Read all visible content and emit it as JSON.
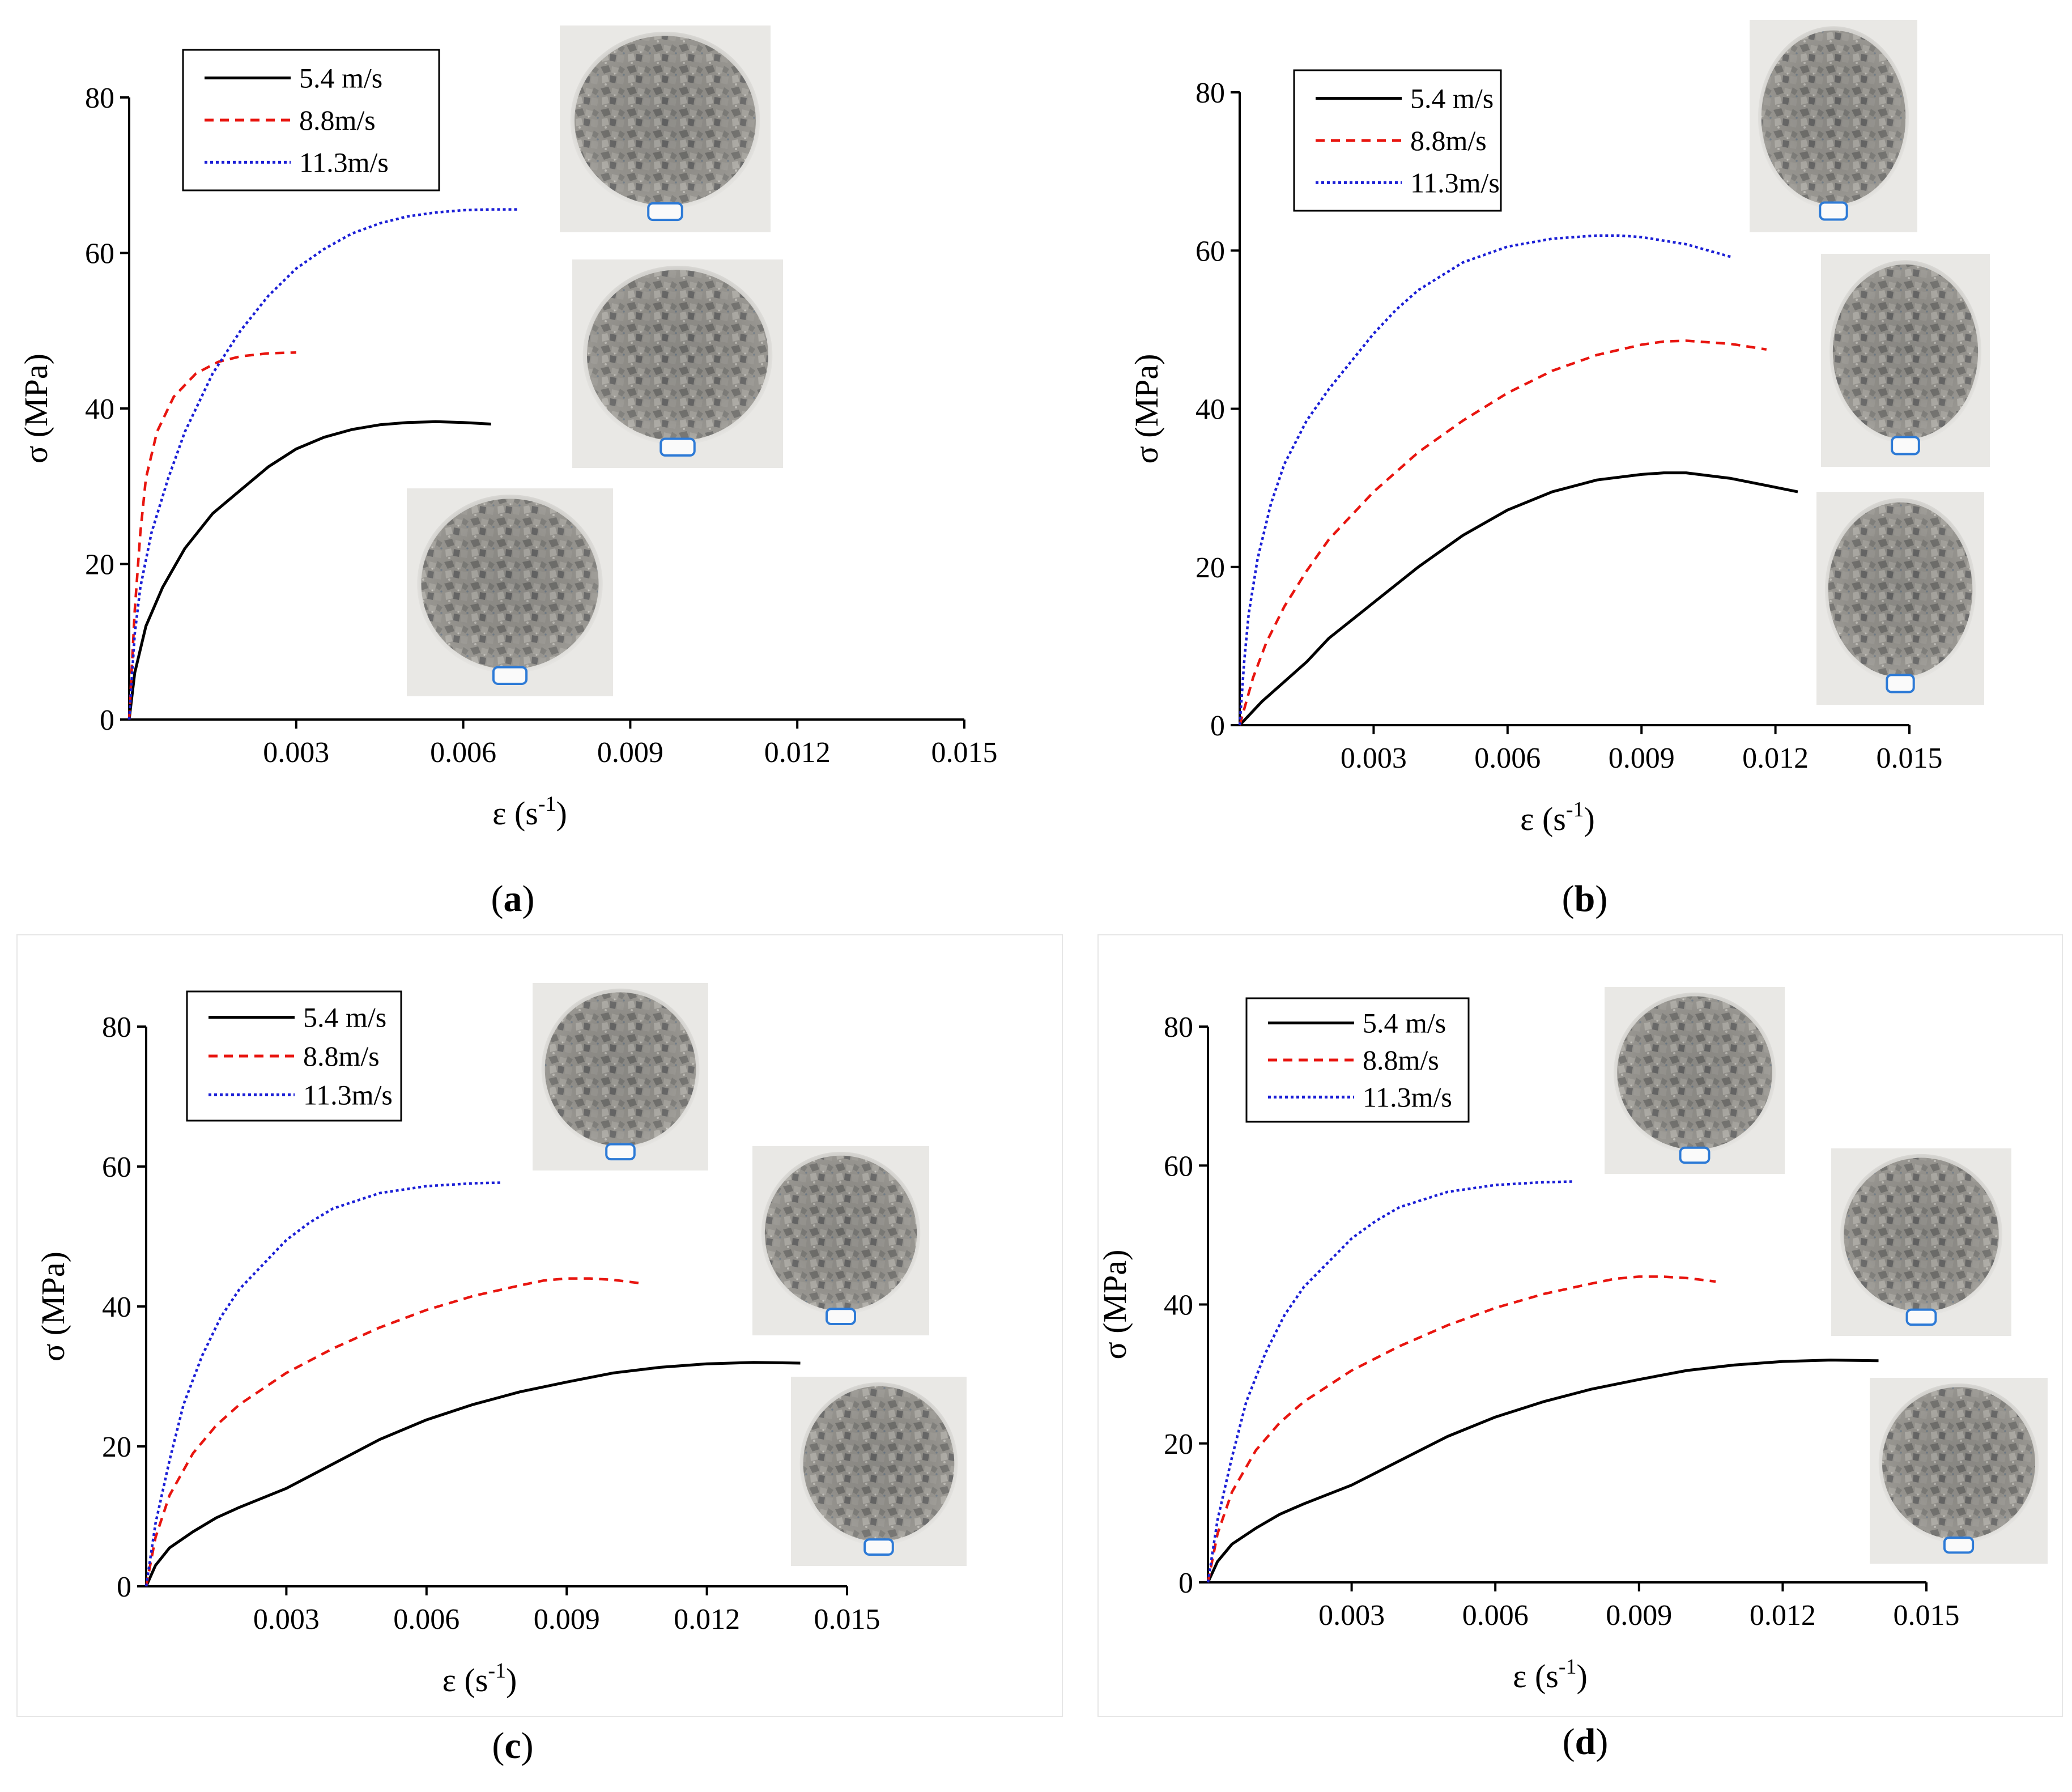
{
  "chart_data": [
    {
      "type": "line",
      "panel_label": "a",
      "xlabel": "ε (s",
      "xlabel_sup": "-1",
      "xlabel_close": ")",
      "ylabel": "σ (MPa)",
      "xlim": [
        0,
        0.015
      ],
      "ylim": [
        0,
        80
      ],
      "xticks": [
        "0.003",
        "0.006",
        "0.009",
        "0.012",
        "0.015"
      ],
      "yticks": [
        "0",
        "20",
        "40",
        "60",
        "80"
      ],
      "legend": [
        "5.4 m/s",
        "8.8m/s",
        "11.3m/s"
      ],
      "series": [
        {
          "name": "5.4 m/s",
          "color": "#000000",
          "style": "solid",
          "points": [
            [
              0,
              0
            ],
            [
              0.0001,
              6
            ],
            [
              0.0003,
              12
            ],
            [
              0.0006,
              17
            ],
            [
              0.001,
              22
            ],
            [
              0.0015,
              26.5
            ],
            [
              0.002,
              29.5
            ],
            [
              0.0025,
              32.5
            ],
            [
              0.003,
              34.8
            ],
            [
              0.0035,
              36.3
            ],
            [
              0.004,
              37.3
            ],
            [
              0.0045,
              37.9
            ],
            [
              0.005,
              38.2
            ],
            [
              0.0055,
              38.3
            ],
            [
              0.006,
              38.2
            ],
            [
              0.0065,
              38.0
            ]
          ]
        },
        {
          "name": "8.8m/s",
          "color": "#e8150f",
          "style": "dash",
          "points": [
            [
              0,
              0
            ],
            [
              0.0001,
              14
            ],
            [
              0.0002,
              24
            ],
            [
              0.0003,
              31
            ],
            [
              0.0005,
              37
            ],
            [
              0.0008,
              41.5
            ],
            [
              0.0012,
              44.5
            ],
            [
              0.0016,
              46
            ],
            [
              0.002,
              46.7
            ],
            [
              0.0025,
              47.1
            ],
            [
              0.003,
              47.2
            ]
          ]
        },
        {
          "name": "11.3m/s",
          "color": "#1b1fd6",
          "style": "dot",
          "points": [
            [
              0,
              0
            ],
            [
              0.0001,
              11
            ],
            [
              0.0002,
              17
            ],
            [
              0.0004,
              24
            ],
            [
              0.0007,
              31
            ],
            [
              0.001,
              37
            ],
            [
              0.0015,
              44.5
            ],
            [
              0.002,
              50
            ],
            [
              0.0025,
              54.5
            ],
            [
              0.003,
              58
            ],
            [
              0.0035,
              60.5
            ],
            [
              0.004,
              62.5
            ],
            [
              0.0045,
              63.8
            ],
            [
              0.005,
              64.7
            ],
            [
              0.0055,
              65.2
            ],
            [
              0.006,
              65.5
            ],
            [
              0.0065,
              65.6
            ],
            [
              0.007,
              65.6
            ]
          ]
        }
      ]
    },
    {
      "type": "line",
      "panel_label": "b",
      "xlabel": "ε (s",
      "xlabel_sup": "-1",
      "xlabel_close": ")",
      "ylabel": "σ (MPa)",
      "xlim": [
        0,
        0.015
      ],
      "ylim": [
        0,
        80
      ],
      "xticks": [
        "0.003",
        "0.006",
        "0.009",
        "0.012",
        "0.015"
      ],
      "yticks": [
        "0",
        "20",
        "40",
        "60",
        "80"
      ],
      "legend": [
        "5.4 m/s",
        "8.8m/s",
        "11.3m/s"
      ],
      "series": [
        {
          "name": "5.4 m/s",
          "color": "#000000",
          "style": "solid",
          "points": [
            [
              0,
              0
            ],
            [
              0.0005,
              3
            ],
            [
              0.001,
              5.5
            ],
            [
              0.0015,
              8
            ],
            [
              0.002,
              11
            ],
            [
              0.003,
              15.5
            ],
            [
              0.004,
              20
            ],
            [
              0.005,
              24
            ],
            [
              0.006,
              27.2
            ],
            [
              0.007,
              29.5
            ],
            [
              0.008,
              31
            ],
            [
              0.009,
              31.7
            ],
            [
              0.0095,
              31.9
            ],
            [
              0.01,
              31.9
            ],
            [
              0.011,
              31.2
            ],
            [
              0.0118,
              30.3
            ],
            [
              0.0125,
              29.5
            ]
          ]
        },
        {
          "name": "8.8m/s",
          "color": "#e8150f",
          "style": "dash",
          "points": [
            [
              0,
              0
            ],
            [
              0.0003,
              6
            ],
            [
              0.0006,
              10.5
            ],
            [
              0.001,
              15
            ],
            [
              0.0015,
              19.5
            ],
            [
              0.002,
              23.5
            ],
            [
              0.003,
              29.5
            ],
            [
              0.004,
              34.5
            ],
            [
              0.005,
              38.5
            ],
            [
              0.006,
              42
            ],
            [
              0.007,
              44.8
            ],
            [
              0.008,
              46.8
            ],
            [
              0.009,
              48.1
            ],
            [
              0.0095,
              48.5
            ],
            [
              0.01,
              48.6
            ],
            [
              0.011,
              48.2
            ],
            [
              0.0118,
              47.5
            ]
          ]
        },
        {
          "name": "11.3m/s",
          "color": "#1b1fd6",
          "style": "dot",
          "points": [
            [
              0,
              0
            ],
            [
              0.0001,
              8
            ],
            [
              0.0002,
              14
            ],
            [
              0.0004,
              21
            ],
            [
              0.0007,
              28
            ],
            [
              0.001,
              33
            ],
            [
              0.0015,
              38.5
            ],
            [
              0.002,
              42.5
            ],
            [
              0.0025,
              46
            ],
            [
              0.003,
              49.5
            ],
            [
              0.0035,
              52.5
            ],
            [
              0.004,
              55
            ],
            [
              0.005,
              58.5
            ],
            [
              0.006,
              60.5
            ],
            [
              0.007,
              61.5
            ],
            [
              0.008,
              61.9
            ],
            [
              0.0085,
              61.9
            ],
            [
              0.009,
              61.7
            ],
            [
              0.01,
              60.8
            ],
            [
              0.011,
              59.2
            ]
          ]
        }
      ]
    },
    {
      "type": "line",
      "panel_label": "c",
      "xlabel": "ε (s",
      "xlabel_sup": "-1",
      "xlabel_close": ")",
      "ylabel": "σ (MPa)",
      "xlim": [
        0,
        0.015
      ],
      "ylim": [
        0,
        80
      ],
      "xticks": [
        "0.003",
        "0.006",
        "0.009",
        "0.012",
        "0.015"
      ],
      "yticks": [
        "0",
        "20",
        "40",
        "60",
        "80"
      ],
      "legend": [
        "5.4 m/s",
        "8.8m/s",
        "11.3m/s"
      ],
      "series": [
        {
          "name": "5.4 m/s",
          "color": "#000000",
          "style": "solid",
          "points": [
            [
              0,
              0
            ],
            [
              0.0002,
              3
            ],
            [
              0.0005,
              5.5
            ],
            [
              0.001,
              7.8
            ],
            [
              0.0015,
              9.8
            ],
            [
              0.002,
              11.3
            ],
            [
              0.003,
              14
            ],
            [
              0.004,
              17.5
            ],
            [
              0.005,
              21
            ],
            [
              0.006,
              23.8
            ],
            [
              0.007,
              26
            ],
            [
              0.008,
              27.8
            ],
            [
              0.009,
              29.2
            ],
            [
              0.01,
              30.5
            ],
            [
              0.011,
              31.3
            ],
            [
              0.012,
              31.8
            ],
            [
              0.013,
              32
            ],
            [
              0.014,
              31.9
            ]
          ]
        },
        {
          "name": "8.8m/s",
          "color": "#e8150f",
          "style": "dash",
          "points": [
            [
              0,
              0
            ],
            [
              0.0002,
              7
            ],
            [
              0.0005,
              13
            ],
            [
              0.001,
              19
            ],
            [
              0.0015,
              23
            ],
            [
              0.002,
              26
            ],
            [
              0.003,
              30.5
            ],
            [
              0.004,
              34
            ],
            [
              0.005,
              37
            ],
            [
              0.006,
              39.5
            ],
            [
              0.007,
              41.5
            ],
            [
              0.008,
              43
            ],
            [
              0.0085,
              43.7
            ],
            [
              0.009,
              44
            ],
            [
              0.0095,
              44
            ],
            [
              0.01,
              43.8
            ],
            [
              0.0106,
              43.3
            ]
          ]
        },
        {
          "name": "11.3m/s",
          "color": "#1b1fd6",
          "style": "dot",
          "points": [
            [
              0,
              0
            ],
            [
              0.0002,
              9
            ],
            [
              0.0005,
              18
            ],
            [
              0.0008,
              26
            ],
            [
              0.0012,
              33
            ],
            [
              0.0016,
              38.5
            ],
            [
              0.002,
              42.5
            ],
            [
              0.0025,
              46
            ],
            [
              0.003,
              49.5
            ],
            [
              0.0035,
              52
            ],
            [
              0.004,
              54
            ],
            [
              0.005,
              56.2
            ],
            [
              0.006,
              57.2
            ],
            [
              0.007,
              57.6
            ],
            [
              0.0076,
              57.7
            ]
          ]
        }
      ]
    },
    {
      "type": "line",
      "panel_label": "d",
      "xlabel": "ε (s",
      "xlabel_sup": "-1",
      "xlabel_close": ")",
      "ylabel": "σ (MPa)",
      "xlim": [
        0,
        0.015
      ],
      "ylim": [
        0,
        80
      ],
      "xticks": [
        "0.003",
        "0.006",
        "0.009",
        "0.012",
        "0.015"
      ],
      "yticks": [
        "0",
        "20",
        "40",
        "60",
        "80"
      ],
      "legend": [
        "5.4 m/s",
        "8.8m/s",
        "11.3m/s"
      ],
      "series": [
        {
          "name": "5.4 m/s",
          "color": "#000000",
          "style": "solid",
          "points": [
            [
              0,
              0
            ],
            [
              0.0002,
              3
            ],
            [
              0.0005,
              5.5
            ],
            [
              0.001,
              7.8
            ],
            [
              0.0015,
              9.8
            ],
            [
              0.002,
              11.3
            ],
            [
              0.003,
              14
            ],
            [
              0.004,
              17.5
            ],
            [
              0.005,
              21
            ],
            [
              0.006,
              23.8
            ],
            [
              0.007,
              26
            ],
            [
              0.008,
              27.8
            ],
            [
              0.009,
              29.2
            ],
            [
              0.01,
              30.5
            ],
            [
              0.011,
              31.3
            ],
            [
              0.012,
              31.8
            ],
            [
              0.013,
              32
            ],
            [
              0.014,
              31.9
            ]
          ]
        },
        {
          "name": "8.8m/s",
          "color": "#e8150f",
          "style": "dash",
          "points": [
            [
              0,
              0
            ],
            [
              0.0002,
              7
            ],
            [
              0.0005,
              13
            ],
            [
              0.001,
              19
            ],
            [
              0.0015,
              23
            ],
            [
              0.002,
              26
            ],
            [
              0.003,
              30.5
            ],
            [
              0.004,
              34
            ],
            [
              0.005,
              37
            ],
            [
              0.006,
              39.5
            ],
            [
              0.007,
              41.5
            ],
            [
              0.008,
              43
            ],
            [
              0.0085,
              43.7
            ],
            [
              0.009,
              44
            ],
            [
              0.0095,
              44
            ],
            [
              0.01,
              43.8
            ],
            [
              0.0106,
              43.3
            ]
          ]
        },
        {
          "name": "11.3m/s",
          "color": "#1b1fd6",
          "style": "dot",
          "points": [
            [
              0,
              0
            ],
            [
              0.0002,
              9
            ],
            [
              0.0005,
              18
            ],
            [
              0.0008,
              26
            ],
            [
              0.0012,
              33
            ],
            [
              0.0016,
              38.5
            ],
            [
              0.002,
              42.5
            ],
            [
              0.0025,
              46
            ],
            [
              0.003,
              49.5
            ],
            [
              0.0035,
              52
            ],
            [
              0.004,
              54
            ],
            [
              0.005,
              56.2
            ],
            [
              0.006,
              57.2
            ],
            [
              0.007,
              57.6
            ],
            [
              0.0076,
              57.7
            ]
          ]
        }
      ]
    }
  ],
  "sample_photos": {
    "a": [
      "rock-sample-photo",
      "rock-sample-photo",
      "rock-sample-photo"
    ],
    "b": [
      "rock-sample-photo",
      "rock-sample-photo",
      "rock-sample-photo"
    ],
    "c": [
      "rock-sample-photo",
      "rock-sample-photo",
      "rock-sample-photo"
    ],
    "d": [
      "rock-sample-photo",
      "rock-sample-photo",
      "rock-sample-photo"
    ]
  }
}
